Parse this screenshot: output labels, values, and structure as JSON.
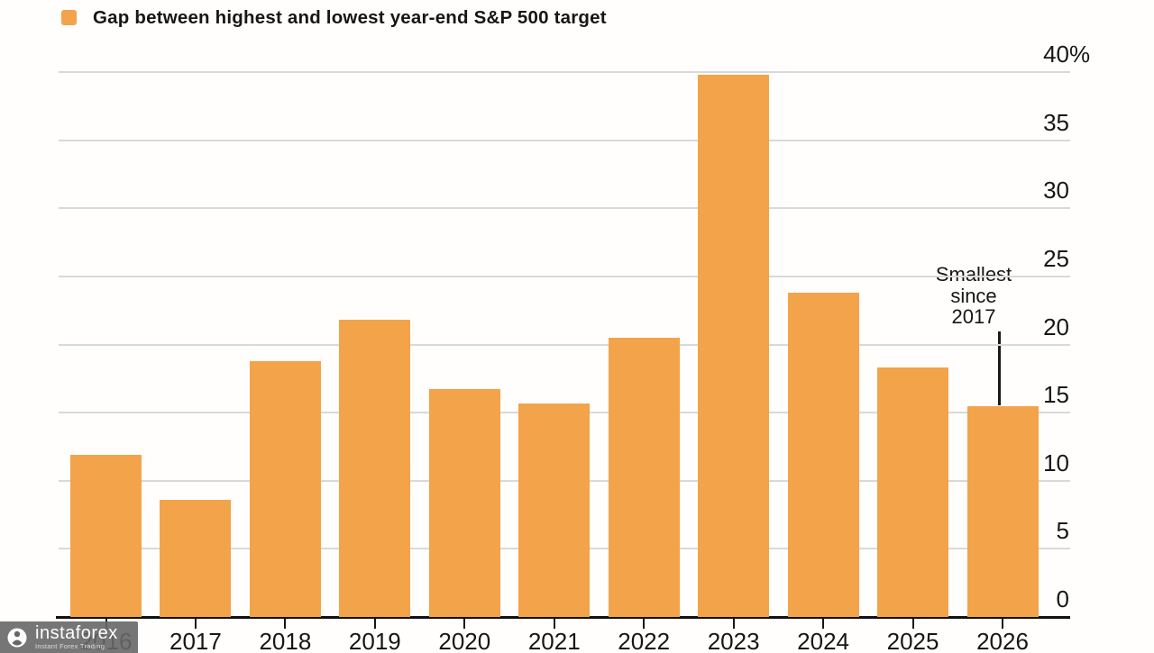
{
  "legend": {
    "label": "Gap between highest and lowest year-end S&P 500 target"
  },
  "colors": {
    "bar": "#f3a34a",
    "grid": "#d9d9d9",
    "axis": "#111111",
    "text": "#161616",
    "watermark_bg": "#676767"
  },
  "annotation": {
    "lines": [
      "Smallest",
      "since",
      "2017"
    ],
    "points_to_category": "2026"
  },
  "watermark": {
    "brand": "instaforex",
    "tagline": "Instant Forex Trading"
  },
  "chart_data": {
    "type": "bar",
    "title": "Gap between highest and lowest year-end S&P 500 target",
    "categories": [
      "2016",
      "2017",
      "2018",
      "2019",
      "2020",
      "2021",
      "2022",
      "2023",
      "2024",
      "2025",
      "2026"
    ],
    "values": [
      11.9,
      8.6,
      18.8,
      21.8,
      16.7,
      15.7,
      20.5,
      39.8,
      23.8,
      18.3,
      15.5
    ],
    "unit": "%",
    "xlabel": "",
    "ylabel": "",
    "ylim": [
      0,
      40
    ],
    "yticks": [
      "40%",
      "35",
      "30",
      "25",
      "20",
      "15",
      "10",
      "5",
      "0"
    ],
    "grid": true,
    "legend_position": "top-left",
    "annotation": "Smallest since 2017"
  }
}
